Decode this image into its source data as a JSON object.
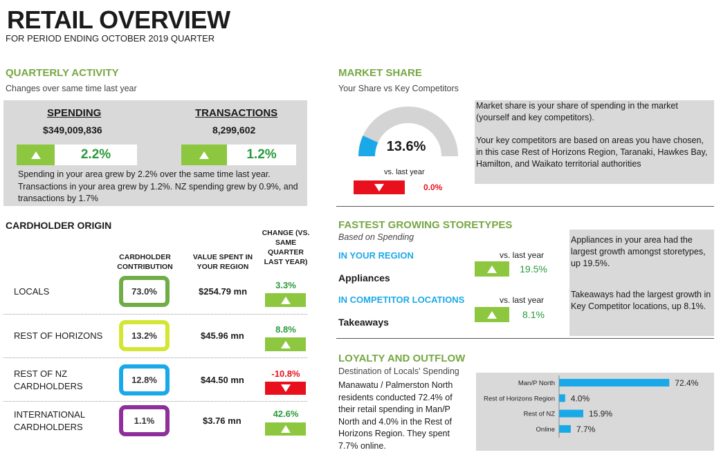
{
  "header": {
    "title": "RETAIL OVERVIEW",
    "subtitle": "FOR PERIOD ENDING OCTOBER 2019 QUARTER"
  },
  "quarterly": {
    "heading": "QUARTERLY ACTIVITY",
    "sub": "Changes over same time last year",
    "spending_label": "SPENDING",
    "spending_value": "$349,009,836",
    "spending_change": "2.2%",
    "transactions_label": "TRANSACTIONS",
    "transactions_value": "8,299,602",
    "transactions_change": "1.2%",
    "note": "Spending in your area grew by 2.2% over the same time last year. Transactions in your area grew by 1.2%.  NZ spending grew by 0.9%, and transactions by 1.7%"
  },
  "origin": {
    "heading": "CARDHOLDER ORIGIN",
    "col_contribution": "CARDHOLDER CONTRIBUTION",
    "col_value": "VALUE SPENT IN YOUR REGION",
    "col_change": "CHANGE (VS. SAME QUARTER LAST YEAR)",
    "rows": [
      {
        "label": "LOCALS",
        "contribution": "73.0%",
        "value": "$254.79 mn",
        "change": "3.3%",
        "direction": "up",
        "color": "#70ad47"
      },
      {
        "label": "REST OF HORIZONS",
        "contribution": "13.2%",
        "value": "$45.96 mn",
        "change": "8.8%",
        "direction": "up",
        "color": "#d4e635"
      },
      {
        "label": "REST OF NZ CARDHOLDERS",
        "contribution": "12.8%",
        "value": "$44.50 mn",
        "change": "-10.8%",
        "direction": "down",
        "color": "#1aa9e8"
      },
      {
        "label": "INTERNATIONAL CARDHOLDERS",
        "contribution": "1.1%",
        "value": "$3.76 mn",
        "change": "42.6%",
        "direction": "up",
        "color": "#8e2f9c"
      }
    ]
  },
  "market": {
    "heading": "MARKET SHARE",
    "sub": "Your Share vs Key Competitors",
    "share_value": "13.6%",
    "share_fraction": 0.136,
    "vs_label": "vs. last year",
    "vs_change": "0.0%",
    "note1": "Market share is your share of spending in the market (yourself and key competitors).",
    "note2": "Your key competitors are based on areas you have chosen, in this case Rest of Horizons Region, Taranaki, Hawkes Bay, Hamilton,  and Waikato territorial authorities"
  },
  "storetypes": {
    "heading": "FASTEST GROWING STORETYPES",
    "sub": "Based on Spending",
    "region_label": "IN YOUR REGION",
    "region_vs": "vs. last year",
    "region_store": "Appliances",
    "region_change": "19.5%",
    "comp_label": "IN COMPETITOR LOCATIONS",
    "comp_vs": "vs. last year",
    "comp_store": "Takeaways",
    "comp_change": "8.1%",
    "note1": "Appliances in your area had the largest growth amongst storetypes, up 19.5%.",
    "note2": "Takeaways had the largest growth in Key Competitor locations, up 8.1%."
  },
  "loyalty": {
    "heading": "LOYALTY AND OUTFLOW",
    "sub": "Destination of Locals' Spending",
    "note": "Manawatu / Palmerston North residents conducted 72.4% of their retail spending in Man/P North and 4.0% in the Rest of Horizons Region. They spent 7.7% online."
  },
  "chart_data": {
    "type": "bar",
    "orientation": "horizontal",
    "categories": [
      "Man/P North",
      "Rest of Horizons Region",
      "Rest of NZ",
      "Online"
    ],
    "values": [
      72.4,
      4.0,
      15.9,
      7.7
    ],
    "labels": [
      "72.4%",
      "4.0%",
      "15.9%",
      "7.7%"
    ],
    "xlim": [
      0,
      100
    ],
    "color": "#1aa9e8"
  }
}
